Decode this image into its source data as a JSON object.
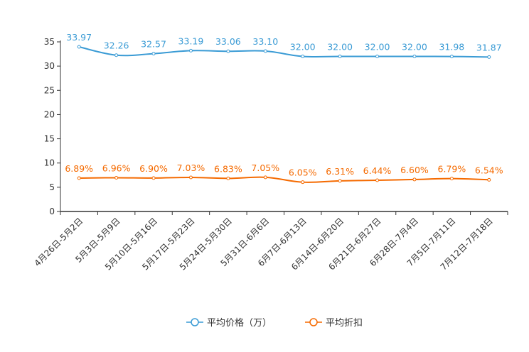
{
  "chart_data": {
    "type": "line",
    "title": "",
    "xlabel": "",
    "ylabel": "",
    "ylim": [
      0,
      35
    ],
    "yticks": [
      0,
      5,
      10,
      15,
      20,
      25,
      30,
      35
    ],
    "grid": false,
    "legend_position": "bottom-center",
    "categories": [
      "4月26日-5月2日",
      "5月3日-5月9日",
      "5月10日-5月16日",
      "5月17日-5月23日",
      "5月24日-5月30日",
      "5月31日-6月6日",
      "6月7日-6月13日",
      "6月14日-6月20日",
      "6月21日-6月27日",
      "6月28日-7月4日",
      "7月5日-7月11日",
      "7月12日-7月18日"
    ],
    "series": [
      {
        "name": "平均价格（万）",
        "color": "#3a9bd5",
        "values": [
          33.97,
          32.26,
          32.57,
          33.19,
          33.06,
          33.1,
          32.0,
          32.0,
          32.0,
          32.0,
          31.98,
          31.87
        ],
        "labels": [
          "33.97",
          "32.26",
          "32.57",
          "33.19",
          "33.06",
          "33.10",
          "32.00",
          "32.00",
          "32.00",
          "32.00",
          "31.98",
          "31.87"
        ]
      },
      {
        "name": "平均折扣",
        "color": "#f56a00",
        "values": [
          6.89,
          6.96,
          6.9,
          7.03,
          6.83,
          7.05,
          6.05,
          6.31,
          6.44,
          6.6,
          6.79,
          6.54
        ],
        "labels": [
          "6.89%",
          "6.96%",
          "6.90%",
          "7.03%",
          "6.83%",
          "7.05%",
          "6.05%",
          "6.31%",
          "6.44%",
          "6.60%",
          "6.79%",
          "6.54%"
        ]
      }
    ]
  }
}
